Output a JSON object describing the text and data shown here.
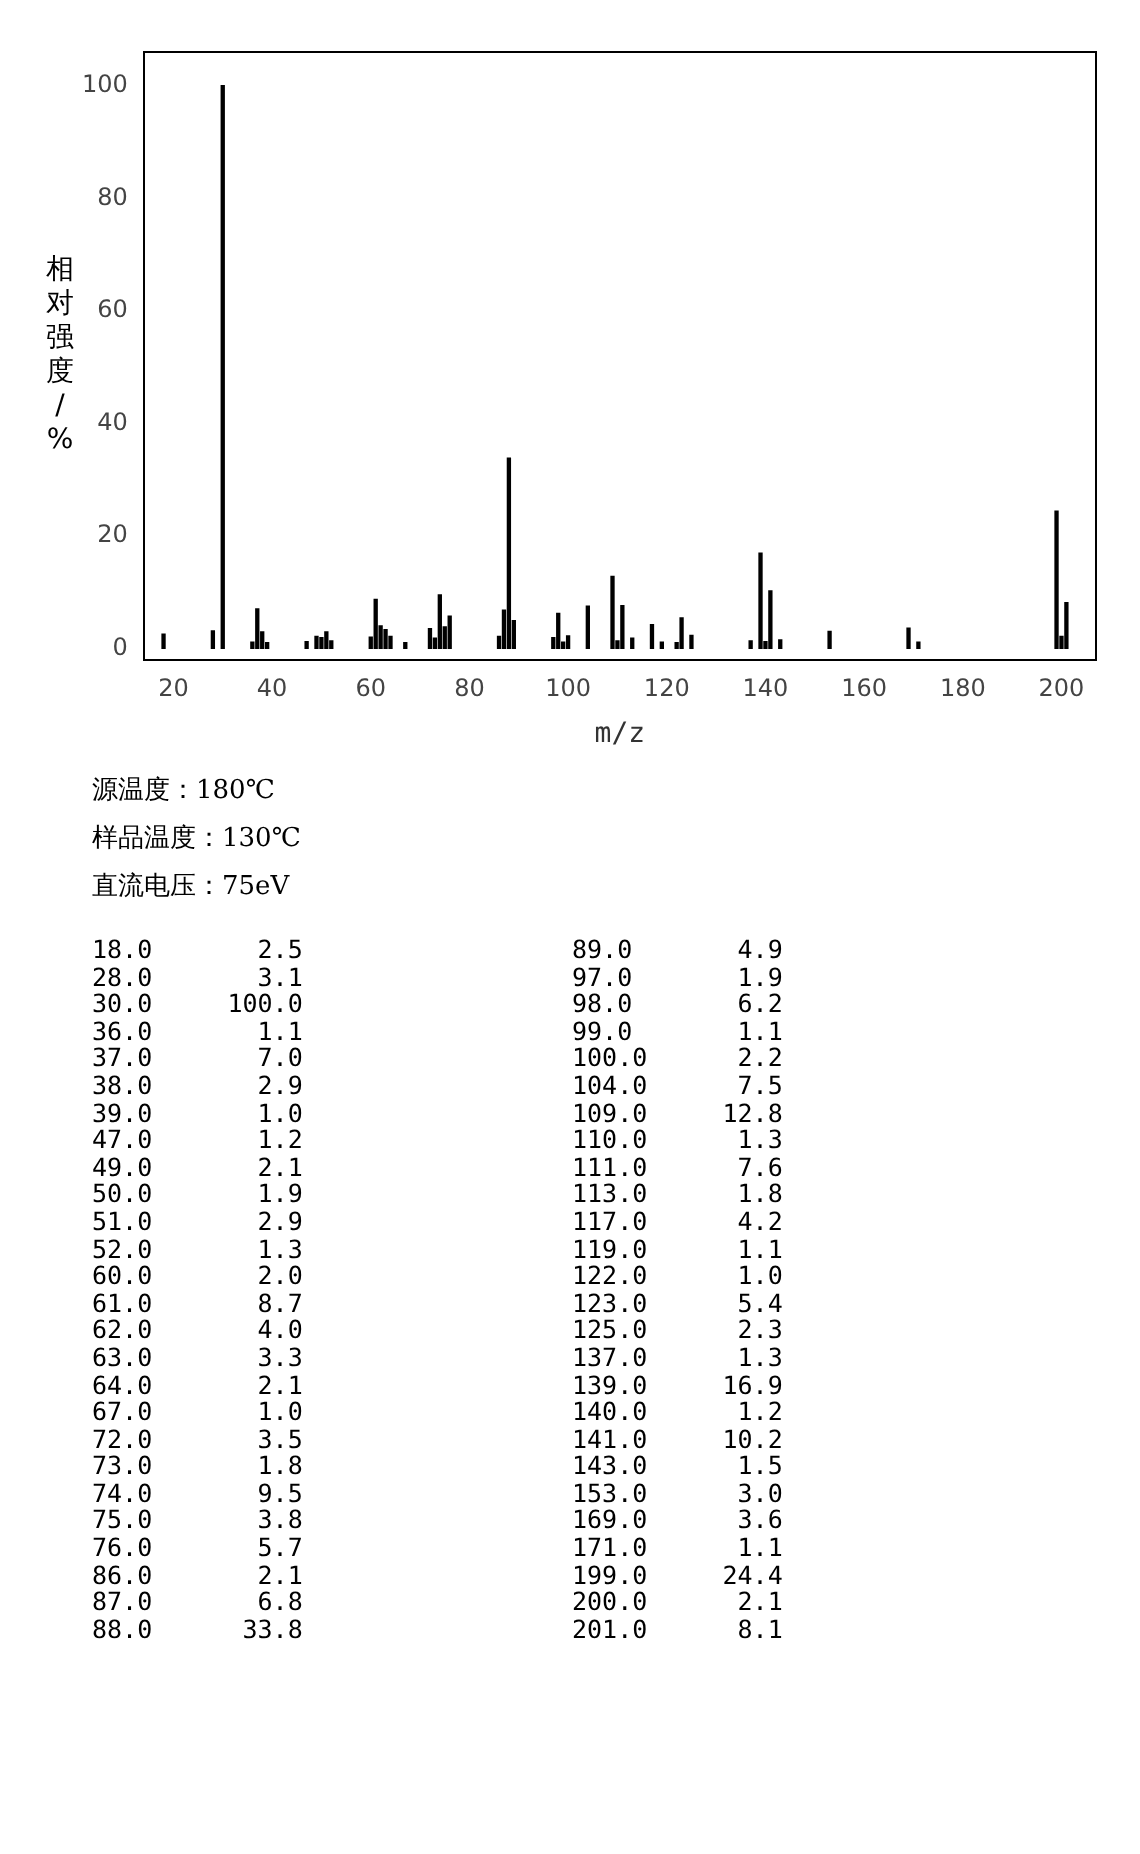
{
  "chart_data": {
    "type": "bar",
    "xlabel": "m/z",
    "ylabel": "相对强度/%",
    "x": [
      18,
      28,
      30,
      36,
      37,
      38,
      39,
      47,
      49,
      50,
      51,
      52,
      60,
      61,
      62,
      63,
      64,
      67,
      72,
      73,
      74,
      75,
      76,
      86,
      87,
      88,
      89,
      97,
      98,
      99,
      100,
      104,
      109,
      110,
      111,
      113,
      117,
      119,
      122,
      123,
      125,
      137,
      139,
      140,
      141,
      143,
      153,
      169,
      171,
      199,
      200,
      201
    ],
    "values": [
      2.5,
      3.1,
      100,
      1.1,
      7.0,
      2.9,
      1.0,
      1.2,
      2.1,
      1.9,
      2.9,
      1.3,
      2.0,
      8.7,
      4.0,
      3.3,
      2.1,
      1.0,
      3.5,
      1.8,
      9.5,
      3.8,
      5.7,
      2.1,
      6.8,
      33.8,
      4.9,
      1.9,
      6.2,
      1.1,
      2.2,
      7.5,
      12.8,
      1.3,
      7.6,
      1.8,
      4.2,
      1.1,
      1.0,
      5.4,
      2.3,
      1.3,
      16.9,
      1.2,
      10.2,
      1.5,
      3.0,
      3.6,
      1.1,
      24.4,
      2.1,
      8.1
    ],
    "color": "#000000",
    "xlim": [
      14,
      207
    ],
    "xticks": [
      20,
      40,
      60,
      80,
      100,
      120,
      140,
      160,
      180,
      200
    ],
    "ylim": [
      -2,
      106
    ],
    "yticks": [
      0,
      20,
      40,
      60,
      80,
      100
    ],
    "grid": false,
    "legend": false,
    "annotations": [
      "源温度：180℃",
      "样品温度：130℃",
      "直流电压：75eV",
      "18.0 2.5",
      "28.0 3.1",
      "30.0 100.0",
      "36.0 1.1",
      "37.0 7.0",
      "38.0 2.9",
      "39.0 1.0",
      "47.0 1.2",
      "49.0 2.1",
      "50.0 1.9",
      "51.0 2.9",
      "52.0 1.3",
      "60.0 2.0",
      "61.0 8.7",
      "62.0 4.0",
      "63.0 3.3",
      "64.0 2.1",
      "67.0 1.0",
      "72.0 3.5",
      "73.0 1.8",
      "74.0 9.5",
      "75.0 3.8",
      "76.0 5.7",
      "86.0 2.1",
      "87.0 6.8",
      "88.0 33.8",
      "89.0 4.9",
      "97.0 1.9",
      "98.0 6.2",
      "99.0 1.1",
      "100.0 2.2",
      "104.0 7.5",
      "109.0 12.8",
      "110.0 1.3",
      "111.0 7.6",
      "113.0 1.8",
      "117.0 4.2",
      "119.0 1.1",
      "122.0 1.0",
      "123.0 5.4",
      "125.0 2.3",
      "137.0 1.3",
      "139.0 16.9",
      "140.0 1.2",
      "141.0 10.2",
      "143.0 1.5",
      "153.0 3.0",
      "169.0 3.6",
      "171.0 1.1",
      "199.0 24.4",
      "200.0 2.1",
      "201.0 8.1"
    ]
  }
}
